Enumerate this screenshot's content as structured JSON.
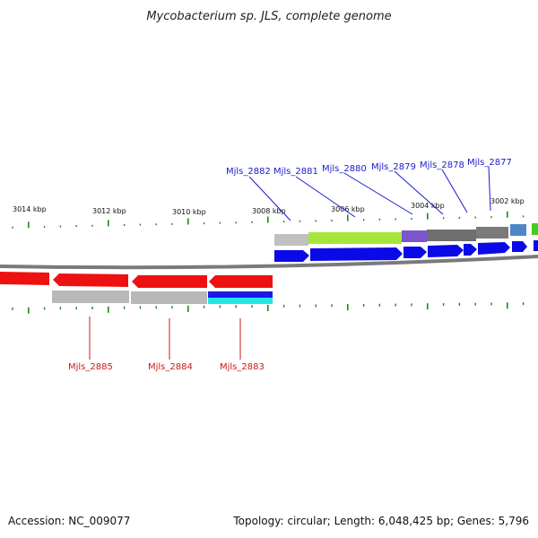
{
  "title": "Mycobacterium sp. JLS, complete genome",
  "footer": {
    "accession": "Accession: NC_009077",
    "summary": "Topology: circular; Length: 6,048,425 bp; Genes: 5,796"
  },
  "colors": {
    "backbone": "#7a7a7a",
    "reverse_cds": "#ee1111",
    "forward_cds": "#0a0ae8",
    "tick": "#1a8a1a",
    "leader_blue": "#1a1ad0",
    "leader_red": "#cc1a1a"
  },
  "scale": {
    "labels": [
      "3014 kbp",
      "3012 kbp",
      "3010 kbp",
      "3008 kbp",
      "3006 kbp",
      "3004 kbp",
      "3002 kbp"
    ]
  },
  "genes_top": [
    {
      "label": "Mjls_2882"
    },
    {
      "label": "Mjls_2881"
    },
    {
      "label": "Mjls_2880"
    },
    {
      "label": "Mjls_2879"
    },
    {
      "label": "Mjls_2878"
    },
    {
      "label": "Mjls_2877"
    }
  ],
  "genes_bottom": [
    {
      "label": "Mjls_2885"
    },
    {
      "label": "Mjls_2884"
    },
    {
      "label": "Mjls_2883"
    }
  ]
}
